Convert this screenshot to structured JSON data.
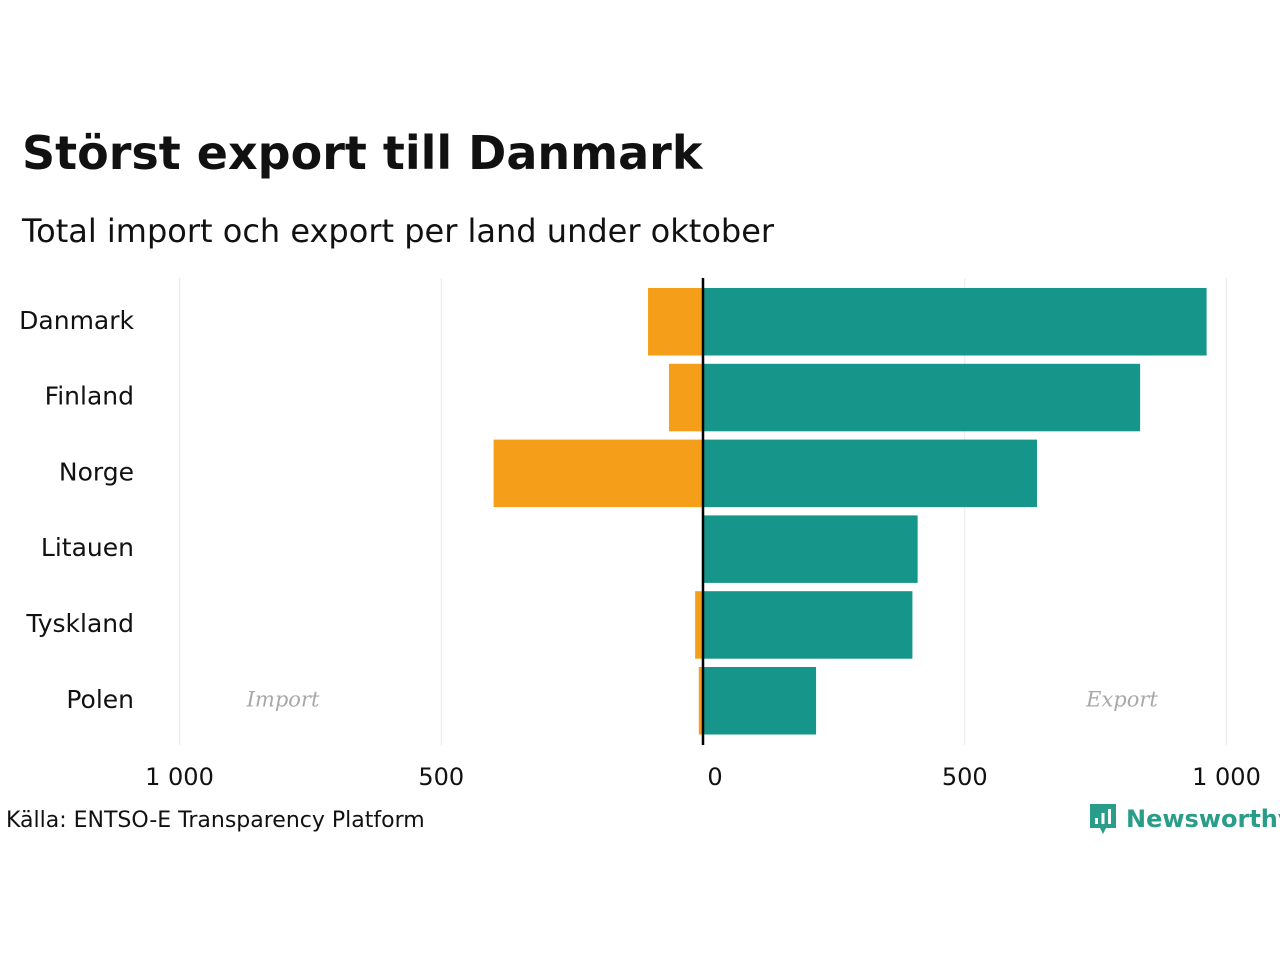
{
  "title": "Störst export till Danmark",
  "subtitle": "Total import och export per land under oktober",
  "source": "Källa: ENTSO-E Transparency Platform",
  "brand": "Newsworthy",
  "colors": {
    "import": "#f59e1a",
    "export": "#16958a",
    "grid": "#e8e8e8",
    "zero_line": "#000000",
    "side_label": "#a8a8a8"
  },
  "chart_data": {
    "type": "bar",
    "orientation": "horizontal",
    "categories": [
      "Danmark",
      "Finland",
      "Norge",
      "Litauen",
      "Tyskland",
      "Polen"
    ],
    "series": [
      {
        "name": "Import",
        "values": [
          105,
          65,
          400,
          0,
          15,
          8
        ]
      },
      {
        "name": "Export",
        "values": [
          962,
          835,
          638,
          410,
          400,
          216
        ]
      }
    ],
    "xlim": [
      -1000,
      1000
    ],
    "xticks": [
      -1000,
      -500,
      0,
      500,
      1000
    ],
    "xtick_labels": [
      "1 000",
      "500",
      "0",
      "500",
      "1 000"
    ],
    "side_labels": {
      "left": "Import",
      "right": "Export"
    },
    "grid": true
  }
}
